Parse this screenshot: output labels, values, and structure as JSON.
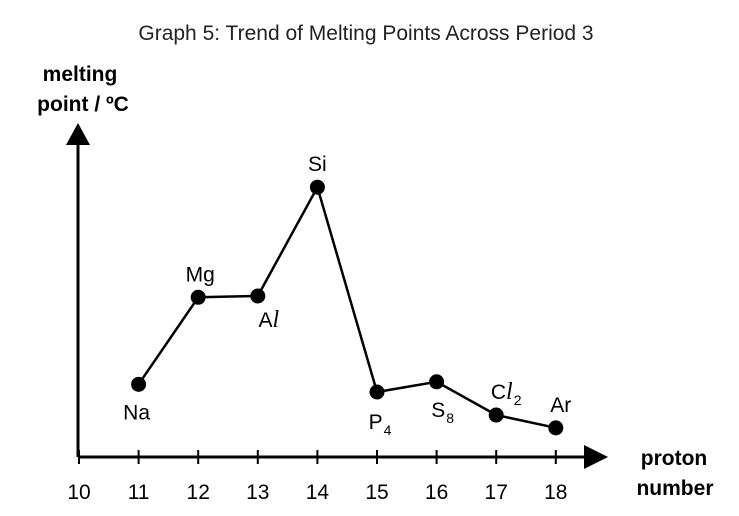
{
  "chart_data": {
    "type": "line",
    "title": "Graph 5: Trend of Melting Points Across Period 3",
    "ylabel_lines": [
      "melting",
      "point / ºC"
    ],
    "xlabel_lines": [
      "proton",
      "number"
    ],
    "x_ticks": [
      "10",
      "11",
      "12",
      "13",
      "14",
      "15",
      "16",
      "17",
      "18"
    ],
    "xlim": [
      10,
      18
    ],
    "ylim": [
      0,
      100
    ],
    "y_ticks_shown": false,
    "grid": false,
    "series": [
      {
        "points": [
          {
            "x": 11,
            "y": 23,
            "label": "Na",
            "label_pos": "below"
          },
          {
            "x": 12,
            "y": 57,
            "label": "Mg",
            "label_pos": "above"
          },
          {
            "x": 13,
            "y": 57.5,
            "label": "Al",
            "label_pos": "below"
          },
          {
            "x": 14,
            "y": 100,
            "label": "Si",
            "label_pos": "above"
          },
          {
            "x": 15,
            "y": 20,
            "label": "P4",
            "label_pos": "below"
          },
          {
            "x": 16,
            "y": 24,
            "label": "S8",
            "label_pos": "below"
          },
          {
            "x": 17,
            "y": 11,
            "label": "Cl2",
            "label_pos": "above"
          },
          {
            "x": 18,
            "y": 6,
            "label": "Ar",
            "label_pos": "above"
          }
        ]
      }
    ]
  },
  "labels": {
    "Al": {
      "main": "A",
      "ital": "l"
    },
    "P4": {
      "main": "P",
      "sub": "4"
    },
    "S8": {
      "main": "S",
      "sub": "8"
    },
    "Cl2": {
      "main": "C",
      "ital": "l",
      "sub": "2"
    }
  }
}
